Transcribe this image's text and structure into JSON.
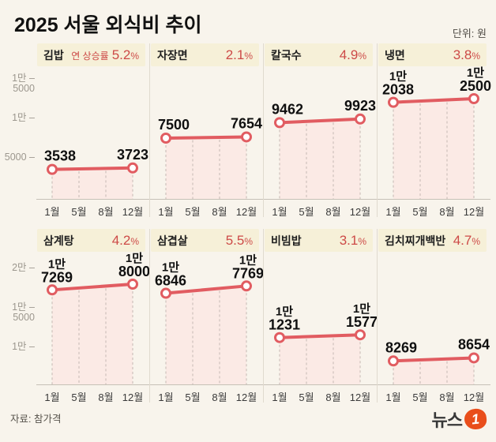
{
  "header": {
    "title": "2025 서울 외식비 추이",
    "unit": "단위: 원"
  },
  "footer": {
    "source": "자료: 참가격",
    "logo_text": "뉴스",
    "logo_one": "1"
  },
  "percent_sign": "%",
  "colors": {
    "background": "#f8f4ec",
    "badge_bg": "#f6f0d8",
    "accent_red": "#cd4a47",
    "line_red": "#e15c61",
    "area_pink": "#fbeae5",
    "grid_dash": "#c4b8b2",
    "axis_line": "#c6c1b7",
    "tick_text": "#9c978e",
    "logo_orange": "#e94e1b"
  },
  "chart_data": {
    "type": "line",
    "title": "2025 서울 외식비 추이",
    "unit": "원",
    "x_labels": [
      "1월",
      "5월",
      "8월",
      "12월"
    ],
    "legend": "none",
    "grid": "dashed-vertical",
    "rows": [
      {
        "ylim": [
          0,
          16000
        ],
        "ticks": [
          {
            "value": 15000,
            "lines": [
              "1만 –",
              "5000"
            ]
          },
          {
            "value": 10000,
            "lines": [
              "1만 –"
            ]
          },
          {
            "value": 5000,
            "lines": [
              "5000 –"
            ]
          }
        ],
        "charts": [
          {
            "name": "김밥",
            "rate_prefix": "연 상승률",
            "rate": "5.2",
            "start": 3538,
            "end": 3723,
            "start_label": [
              "3538"
            ],
            "end_label": [
              "3723"
            ]
          },
          {
            "name": "자장면",
            "rate_prefix": "",
            "rate": "2.1",
            "start": 7500,
            "end": 7654,
            "start_label": [
              "7500"
            ],
            "end_label": [
              "7654"
            ]
          },
          {
            "name": "칼국수",
            "rate_prefix": "",
            "rate": "4.9",
            "start": 9462,
            "end": 9923,
            "start_label": [
              "9462"
            ],
            "end_label": [
              "9923"
            ]
          },
          {
            "name": "냉면",
            "rate_prefix": "",
            "rate": "3.8",
            "start": 12038,
            "end": 12500,
            "start_label": [
              "1만",
              "2038"
            ],
            "end_label": [
              "1만",
              "2500"
            ]
          }
        ]
      },
      {
        "ylim": [
          5000,
          21000
        ],
        "ticks": [
          {
            "value": 20000,
            "lines": [
              "2만 –"
            ]
          },
          {
            "value": 15000,
            "lines": [
              "1만 –",
              "5000"
            ]
          },
          {
            "value": 10000,
            "lines": [
              "1만 –"
            ]
          }
        ],
        "charts": [
          {
            "name": "삼계탕",
            "rate_prefix": "",
            "rate": "4.2",
            "start": 17269,
            "end": 18000,
            "start_label": [
              "1만",
              "7269"
            ],
            "end_label": [
              "1만",
              "8000"
            ]
          },
          {
            "name": "삼겹살",
            "rate_prefix": "",
            "rate": "5.5",
            "start": 16846,
            "end": 17769,
            "start_label": [
              "1만",
              "6846"
            ],
            "end_label": [
              "1만",
              "7769"
            ]
          },
          {
            "name": "비빔밥",
            "rate_prefix": "",
            "rate": "3.1",
            "start": 11231,
            "end": 11577,
            "start_label": [
              "1만",
              "1231"
            ],
            "end_label": [
              "1만",
              "1577"
            ]
          },
          {
            "name": "김치찌개백반",
            "rate_prefix": "",
            "rate": "4.7",
            "start": 8269,
            "end": 8654,
            "start_label": [
              "8269"
            ],
            "end_label": [
              "8654"
            ]
          }
        ]
      }
    ]
  }
}
